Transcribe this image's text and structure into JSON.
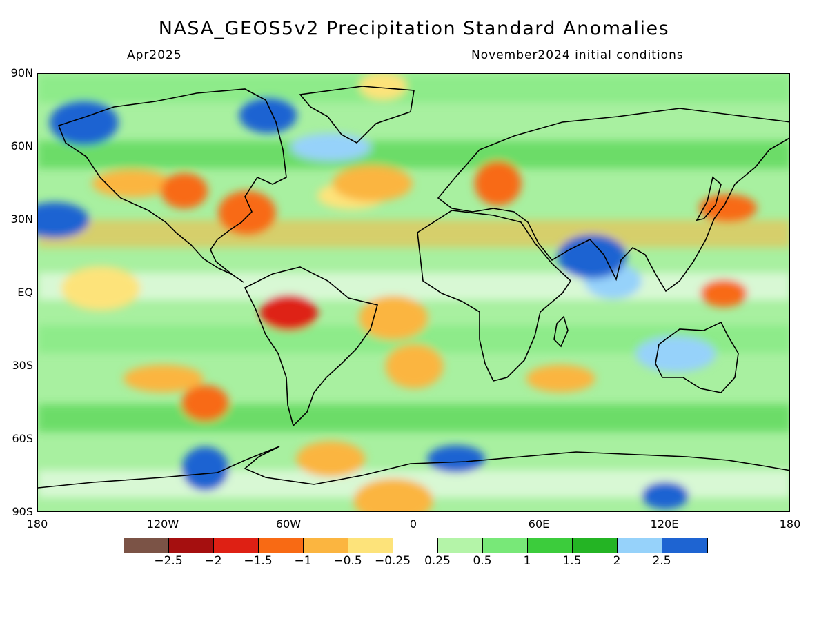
{
  "title": "NASA_GEOS5v2 Precipitation Standard Anomalies",
  "subtitle_left": "Apr2025",
  "subtitle_right": "November2024 initial conditions",
  "lat_labels": [
    "90N",
    "60N",
    "30N",
    "EQ",
    "30S",
    "60S",
    "90S"
  ],
  "lon_labels": [
    "180",
    "120W",
    "60W",
    "0",
    "60E",
    "120E",
    "180"
  ],
  "colorbar": {
    "colors": [
      "#7b5346",
      "#a50f0f",
      "#de2014",
      "#f86a14",
      "#fbb540",
      "#fde37a",
      "#ffffff",
      "#b4f4a8",
      "#78e878",
      "#3ccc3c",
      "#24b424",
      "#96d2fa",
      "#1e64d2"
    ],
    "ticks": [
      "-2.5",
      "-2",
      "-1.5",
      "-1",
      "-0.5",
      "-0.25",
      "0.25",
      "0.5",
      "1",
      "1.5",
      "2",
      "2.5"
    ]
  },
  "map": {
    "extent": {
      "lon": [
        -180,
        180
      ],
      "lat": [
        -90,
        90
      ]
    },
    "anomaly_regions": [
      {
        "lon": -15,
        "lat": 85,
        "value": -0.5
      },
      {
        "lon": -70,
        "lat": 73,
        "value": 2.5
      },
      {
        "lon": -158,
        "lat": 70,
        "value": 2.5
      },
      {
        "lon": -135,
        "lat": 45,
        "value": -1
      },
      {
        "lon": -110,
        "lat": 42,
        "value": -1.5
      },
      {
        "lon": -80,
        "lat": 33,
        "value": -1.5
      },
      {
        "lon": -30,
        "lat": 40,
        "value": -0.5
      },
      {
        "lon": -20,
        "lat": 45,
        "value": -1
      },
      {
        "lon": 40,
        "lat": 45,
        "value": -1.5
      },
      {
        "lon": 150,
        "lat": 35,
        "value": -1.5
      },
      {
        "lon": -172,
        "lat": 30,
        "value": 2.5
      },
      {
        "lon": -150,
        "lat": 2,
        "value": -0.5
      },
      {
        "lon": 148,
        "lat": 0,
        "value": -1.5
      },
      {
        "lon": -60,
        "lat": -8,
        "value": -2
      },
      {
        "lon": -10,
        "lat": -10,
        "value": -1
      },
      {
        "lon": -120,
        "lat": -35,
        "value": -1
      },
      {
        "lon": -100,
        "lat": -45,
        "value": -1.5
      },
      {
        "lon": 0,
        "lat": -30,
        "value": -1
      },
      {
        "lon": 70,
        "lat": -35,
        "value": -1
      },
      {
        "lon": 125,
        "lat": -25,
        "value": 2
      },
      {
        "lon": -100,
        "lat": -72,
        "value": 2.5
      },
      {
        "lon": 20,
        "lat": -68,
        "value": 2.5
      },
      {
        "lon": -40,
        "lat": -68,
        "value": -1
      },
      {
        "lon": -10,
        "lat": -85,
        "value": -1
      },
      {
        "lon": 120,
        "lat": -83,
        "value": 2.5
      },
      {
        "lon": 95,
        "lat": 5,
        "value": 2
      },
      {
        "lon": 85,
        "lat": 15,
        "value": 2.5
      },
      {
        "lon": -40,
        "lat": 60,
        "value": 2
      }
    ]
  }
}
